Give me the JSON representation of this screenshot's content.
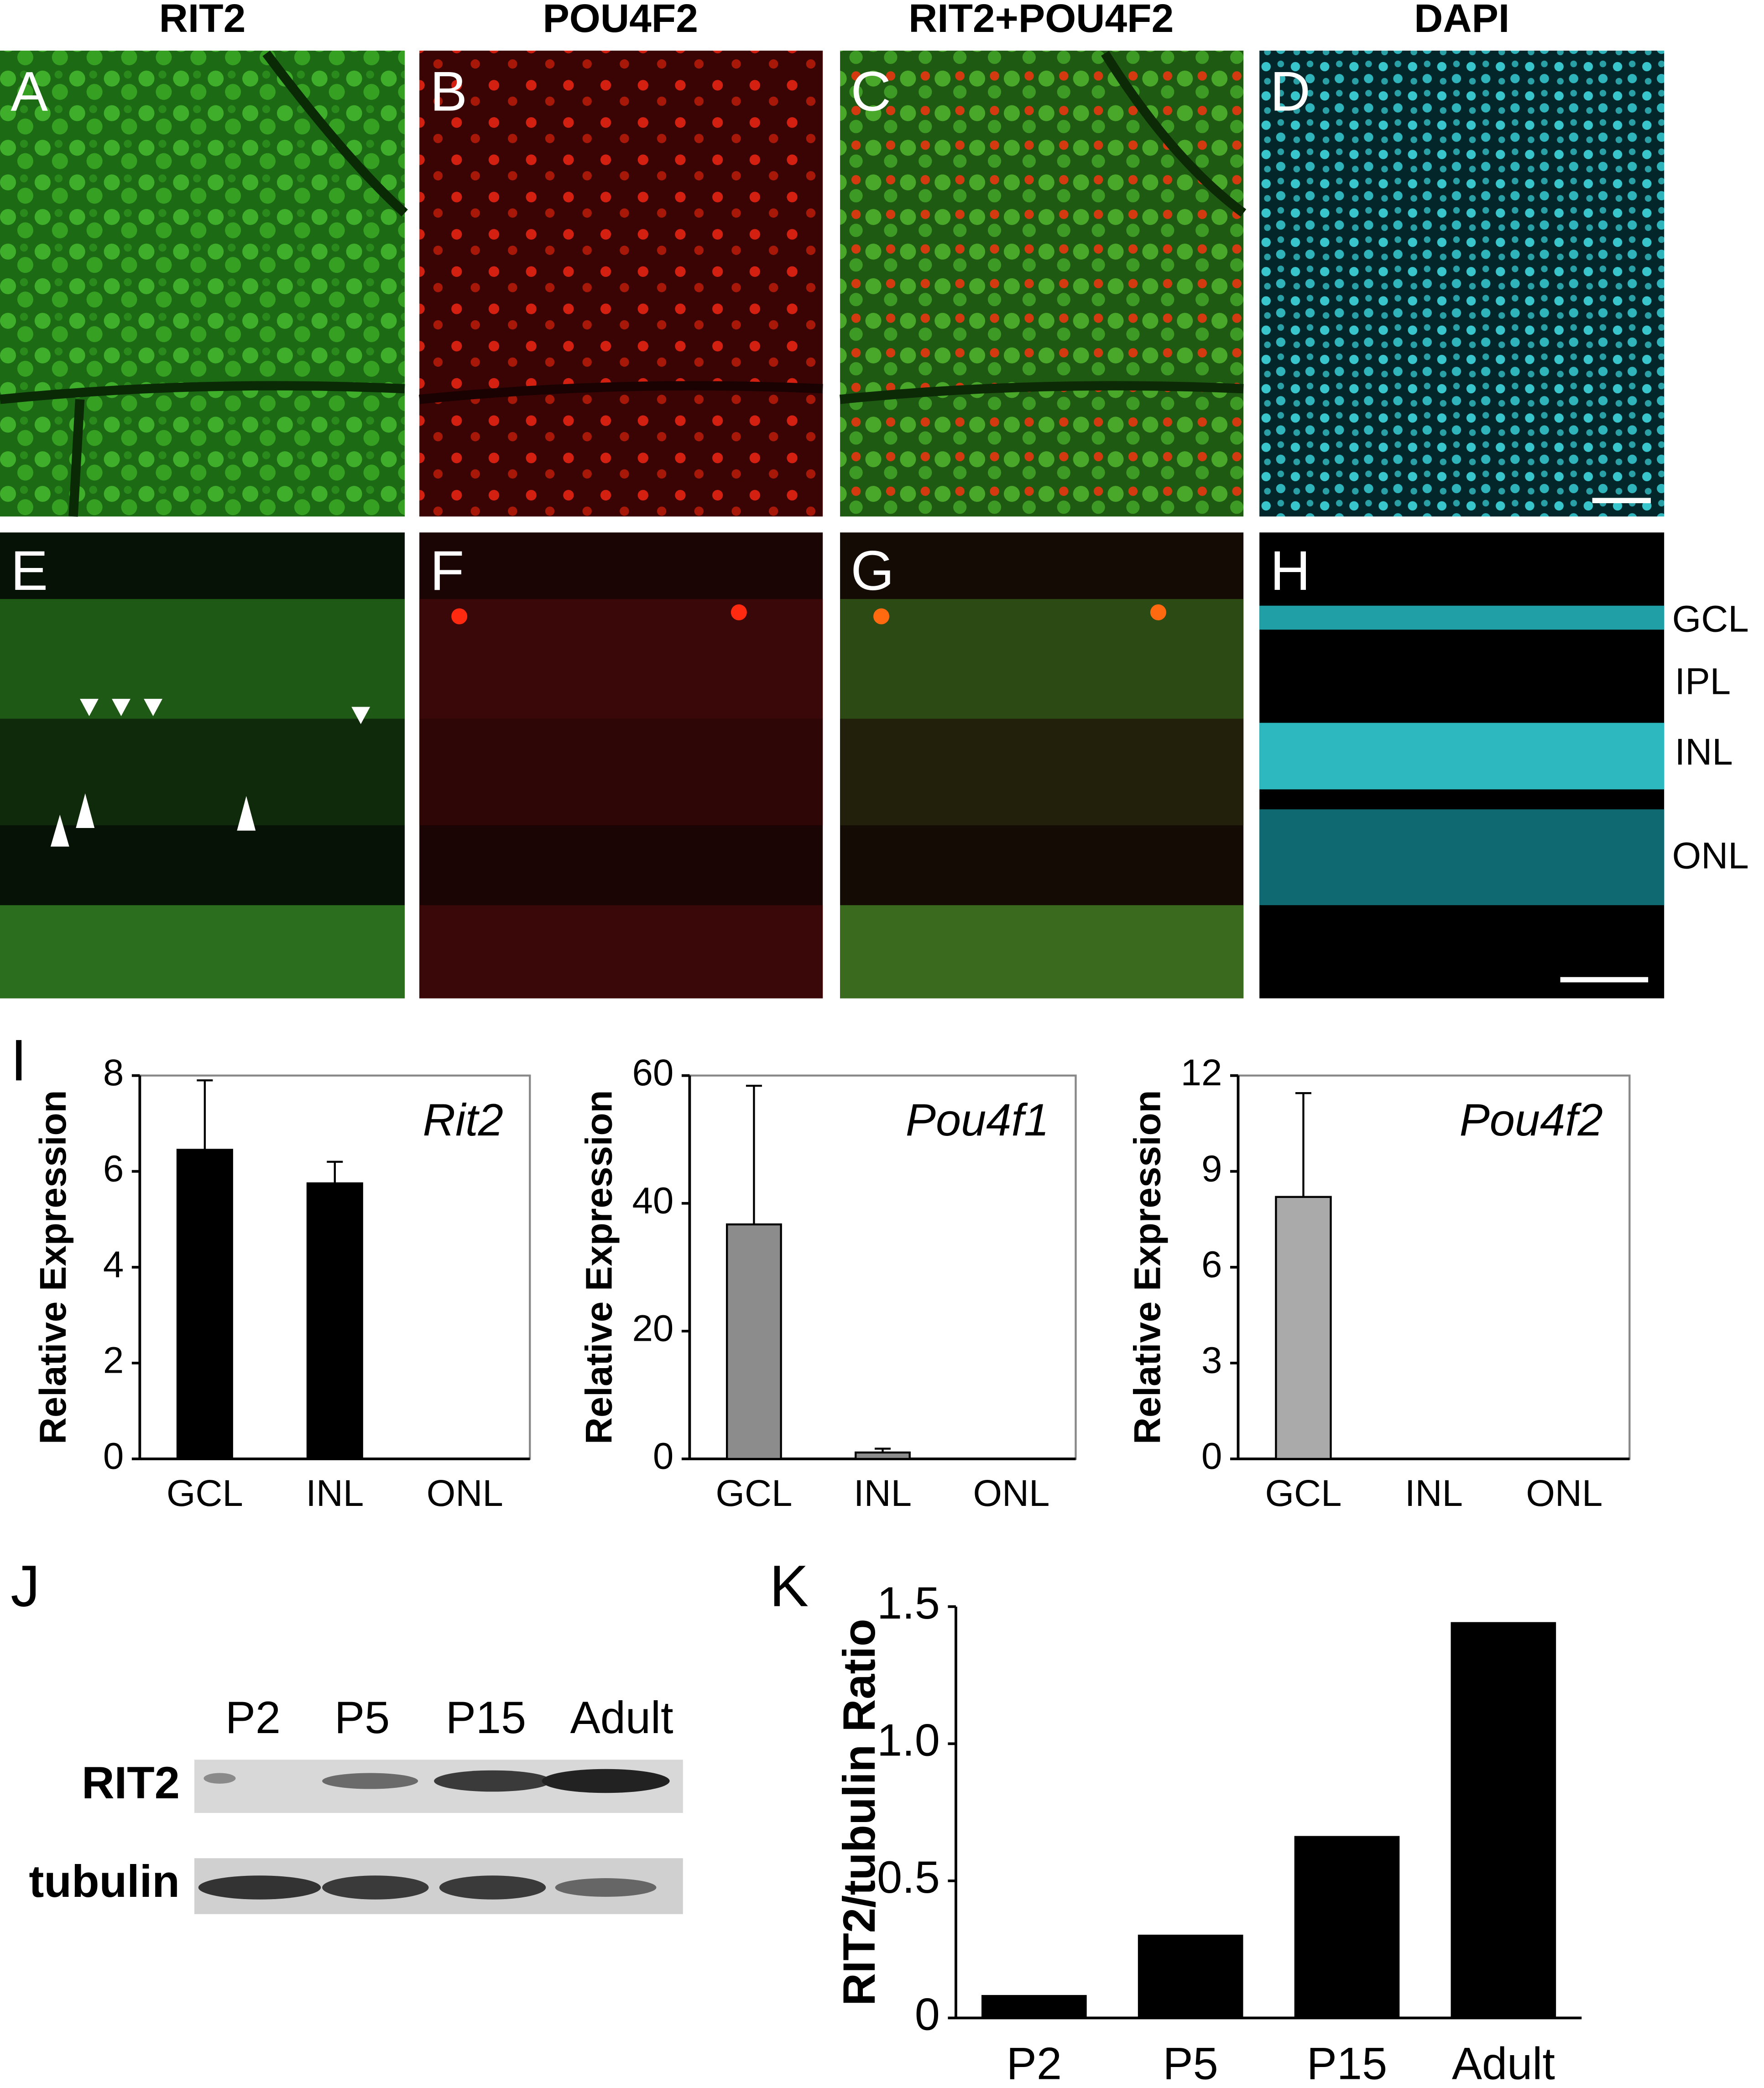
{
  "figure": {
    "column_titles": [
      "RIT2",
      "POU4F2",
      "RIT2+POU4F2",
      "DAPI"
    ],
    "panel_letters": [
      "A",
      "B",
      "C",
      "D",
      "E",
      "F",
      "G",
      "H",
      "I",
      "J",
      "K"
    ],
    "layer_labels": [
      "GCL",
      "IPL",
      "INL",
      "ONL"
    ]
  },
  "western_blot": {
    "lanes": [
      "P2",
      "P5",
      "P15",
      "Adult"
    ],
    "rows": [
      "RIT2",
      "tubulin"
    ]
  },
  "chart_data": [
    {
      "type": "bar",
      "title": "Rit2",
      "ylabel": "Relative Expression",
      "categories": [
        "GCL",
        "INL",
        "ONL"
      ],
      "values": [
        6.45,
        5.75,
        0
      ],
      "errors": [
        1.45,
        0.45,
        0
      ],
      "color": "#000000",
      "ylim": [
        0,
        8
      ],
      "yticks": [
        0,
        2,
        4,
        6,
        8
      ],
      "frame": true
    },
    {
      "type": "bar",
      "title": "Pou4f1",
      "ylabel": "Relative Expression",
      "categories": [
        "GCL",
        "INL",
        "ONL"
      ],
      "values": [
        36.7,
        1.0,
        0
      ],
      "errors": [
        21.7,
        0.6,
        0
      ],
      "color": "#8c8c8c",
      "ylim": [
        0,
        60
      ],
      "yticks": [
        0,
        20,
        40,
        60
      ],
      "frame": true
    },
    {
      "type": "bar",
      "title": "Pou4f2",
      "ylabel": "Relative Expression",
      "categories": [
        "GCL",
        "INL",
        "ONL"
      ],
      "values": [
        8.2,
        0,
        0
      ],
      "errors": [
        3.25,
        0,
        0
      ],
      "color": "#aaaaaa",
      "ylim": [
        0,
        12
      ],
      "yticks": [
        0,
        3,
        6,
        9,
        12
      ],
      "frame": true
    },
    {
      "type": "bar",
      "ylabel": "RIT2/tubulin Ratio",
      "categories": [
        "P2",
        "P5",
        "P15",
        "Adult"
      ],
      "values": [
        0.08,
        0.3,
        0.66,
        1.44
      ],
      "color": "#000000",
      "ylim": [
        0,
        1.5
      ],
      "yticks": [
        0,
        0.5,
        {
          "value": 1,
          "label": "1.0"
        },
        1.5
      ],
      "frame": false
    }
  ]
}
